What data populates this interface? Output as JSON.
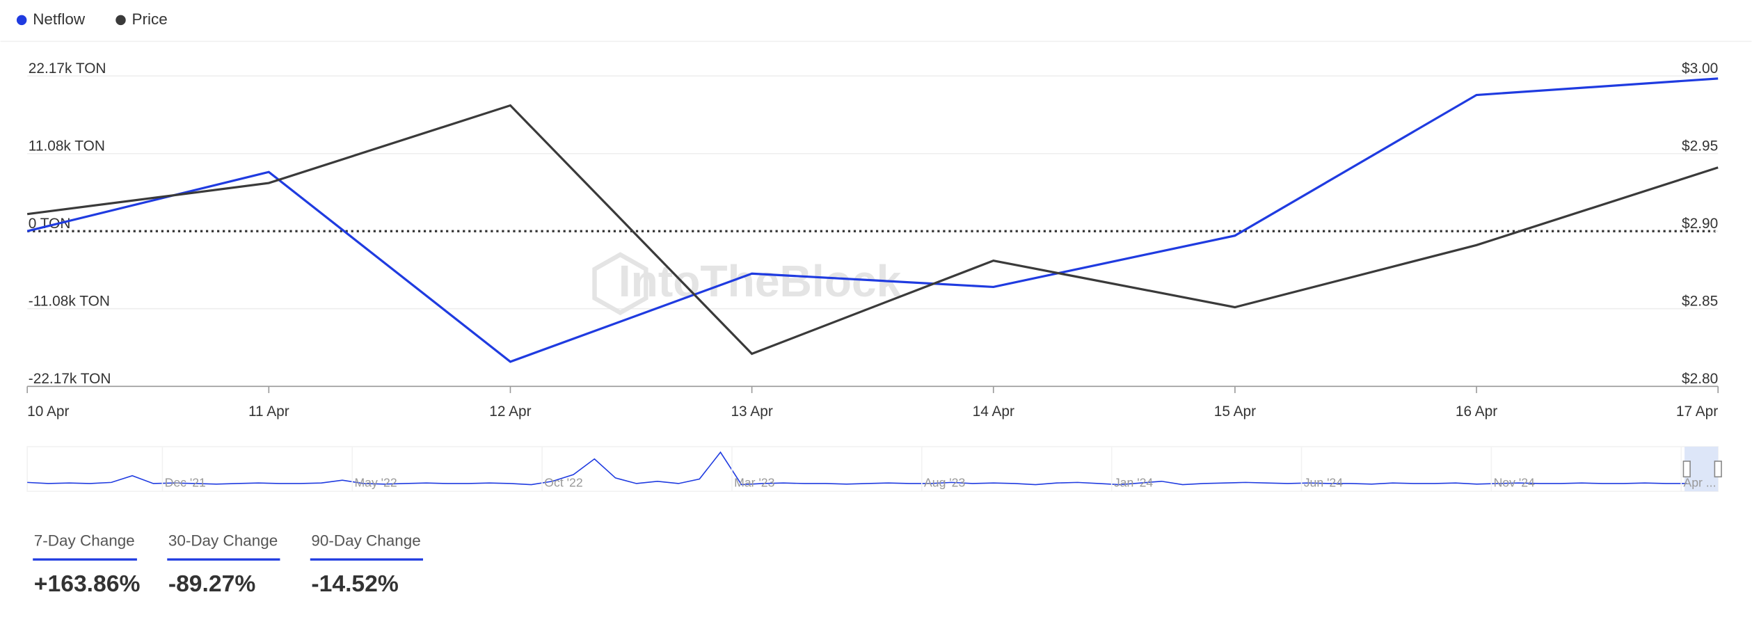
{
  "chart_data": {
    "type": "line",
    "legend": [
      "Netflow",
      "Price"
    ],
    "watermark": "IntoTheBlock",
    "categories": [
      "10 Apr",
      "11 Apr",
      "12 Apr",
      "13 Apr",
      "14 Apr",
      "15 Apr",
      "16 Apr",
      "17 Apr"
    ],
    "series": [
      {
        "name": "Netflow",
        "color": "#1f3be0",
        "values": [
          0,
          8450,
          -18650,
          -6060,
          -7970,
          -640,
          19450,
          21800
        ]
      },
      {
        "name": "Price",
        "color": "#3a3a3a",
        "axis": "y2",
        "values": [
          2.911,
          2.931,
          2.981,
          2.821,
          2.881,
          2.851,
          2.891,
          2.941
        ]
      }
    ],
    "ylim": [
      -22170,
      22170
    ],
    "yticks": [
      {
        "value": 22170,
        "label": "22.17k TON"
      },
      {
        "value": 11080,
        "label": "11.08k TON"
      },
      {
        "value": 0,
        "label": "0 TON"
      },
      {
        "value": -11080,
        "label": "-11.08k TON"
      },
      {
        "value": -22170,
        "label": "-22.17k TON"
      }
    ],
    "y2lim": [
      2.8,
      3.0
    ],
    "y2ticks": [
      {
        "value": 3.0,
        "label": "$3.00"
      },
      {
        "value": 2.95,
        "label": "$2.95"
      },
      {
        "value": 2.9,
        "label": "$2.90"
      },
      {
        "value": 2.85,
        "label": "$2.85"
      },
      {
        "value": 2.8,
        "label": "$2.80"
      }
    ],
    "grid": true,
    "overview": {
      "categories": [
        "Dec '21",
        "May '22",
        "Oct '22",
        "Mar '23",
        "Aug '23",
        "Jan '24",
        "Jun '24",
        "Nov '24",
        "Apr ..."
      ],
      "color": "#1f3be0",
      "ylim": [
        -6,
        34
      ],
      "values": [
        1,
        0,
        0.5,
        0,
        1,
        7,
        0,
        0.5,
        0,
        -0.5,
        0,
        0.5,
        0,
        0,
        0.5,
        3,
        0,
        -0.5,
        0,
        0.5,
        0,
        0,
        0.5,
        0,
        -1,
        2,
        8,
        22,
        5,
        0,
        2,
        0,
        4,
        28,
        -1,
        0,
        0.5,
        0,
        0,
        -0.5,
        0,
        0.5,
        0,
        0,
        1,
        0,
        0.5,
        0,
        -1,
        0.5,
        1,
        0,
        -1,
        0.5,
        2,
        -1,
        0,
        0.5,
        1,
        0.5,
        0,
        0.5,
        0,
        0,
        -0.5,
        0.5,
        0,
        0,
        0.5,
        -0.5,
        0,
        0.5,
        0,
        0,
        0.5,
        0,
        0,
        0.5,
        0,
        0
      ]
    }
  },
  "stats": [
    {
      "label": "7-Day Change",
      "value": "+163.86%"
    },
    {
      "label": "30-Day Change",
      "value": "-89.27%"
    },
    {
      "label": "90-Day Change",
      "value": "-14.52%"
    }
  ]
}
